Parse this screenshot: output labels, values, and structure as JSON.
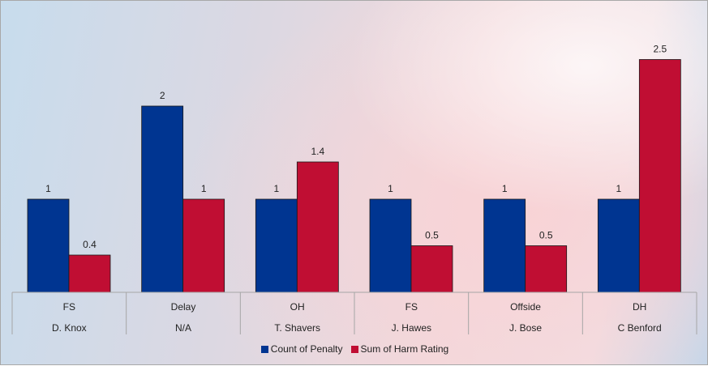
{
  "chart_data": {
    "type": "bar",
    "categories": [
      {
        "top": "FS",
        "bottom": "D. Knox"
      },
      {
        "top": "Delay",
        "bottom": "N/A"
      },
      {
        "top": "OH",
        "bottom": "T. Shavers"
      },
      {
        "top": "FS",
        "bottom": "J. Hawes"
      },
      {
        "top": "Offside",
        "bottom": "J. Bose"
      },
      {
        "top": "DH",
        "bottom": "C Benford"
      }
    ],
    "series": [
      {
        "name": "Count of Penalty",
        "color": "#003591",
        "values": [
          1,
          2,
          1,
          1,
          1,
          1
        ],
        "labels": [
          "1",
          "2",
          "1",
          "1",
          "1",
          "1"
        ]
      },
      {
        "name": "Sum of Harm Rating",
        "color": "#c00e33",
        "values": [
          0.4,
          1,
          1.4,
          0.5,
          0.5,
          2.5
        ],
        "labels": [
          "0.4",
          "1",
          "1.4",
          "0.5",
          "0.5",
          "2.5"
        ]
      }
    ],
    "ylim": [
      0,
      2.6
    ],
    "legend": "bottom",
    "grid": false
  }
}
